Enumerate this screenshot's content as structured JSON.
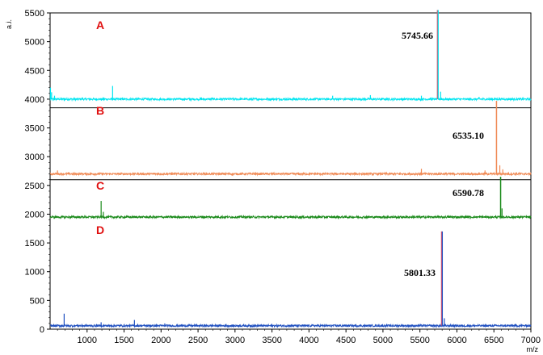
{
  "chart_data": {
    "type": "line",
    "title": "",
    "xlabel": "m/z",
    "ylabel": "a.i.",
    "xlim": [
      500,
      7000
    ],
    "ylim": [
      0,
      5500
    ],
    "x_ticks": [
      1000,
      1500,
      2000,
      2500,
      3000,
      3500,
      4000,
      4500,
      5000,
      5500,
      6000,
      6500,
      7000
    ],
    "y_ticks": [
      0,
      500,
      1000,
      1500,
      2000,
      2500,
      3000,
      3500,
      4000,
      4500,
      5000,
      5500
    ],
    "grid": false,
    "legend": "none",
    "series": [
      {
        "label": "A",
        "color": "#00e5f0",
        "baseline": 4000,
        "peak_label": "5745.66",
        "peaks": [
          {
            "x": 505,
            "h": 200
          },
          {
            "x": 520,
            "h": 120
          },
          {
            "x": 560,
            "h": 60
          },
          {
            "x": 1345,
            "h": 230
          },
          {
            "x": 4320,
            "h": 60
          },
          {
            "x": 4830,
            "h": 70
          },
          {
            "x": 5520,
            "h": 60
          },
          {
            "x": 5745.66,
            "h": 1550
          },
          {
            "x": 5780,
            "h": 130
          },
          {
            "x": 6300,
            "h": 40
          }
        ]
      },
      {
        "label": "B",
        "color": "#f08a55",
        "baseline": 2700,
        "peak_label": "6535.10",
        "peaks": [
          {
            "x": 600,
            "h": 60
          },
          {
            "x": 5520,
            "h": 90
          },
          {
            "x": 6380,
            "h": 60
          },
          {
            "x": 6535.1,
            "h": 1270
          },
          {
            "x": 6580,
            "h": 150
          },
          {
            "x": 6620,
            "h": 80
          }
        ]
      },
      {
        "label": "C",
        "color": "#1a8a1a",
        "baseline": 1950,
        "peak_label": "6590.78",
        "peaks": [
          {
            "x": 1190,
            "h": 280
          },
          {
            "x": 1220,
            "h": 90
          },
          {
            "x": 6590.78,
            "h": 700
          },
          {
            "x": 6610,
            "h": 150
          }
        ]
      },
      {
        "label": "D",
        "color": "#2050c0",
        "baseline": 60,
        "peak_label": "5801.33",
        "peaks": [
          {
            "x": 690,
            "h": 210
          },
          {
            "x": 1190,
            "h": 60
          },
          {
            "x": 1640,
            "h": 100
          },
          {
            "x": 2050,
            "h": 40
          },
          {
            "x": 2880,
            "h": 30
          },
          {
            "x": 4500,
            "h": 25
          },
          {
            "x": 5801.33,
            "h": 1640
          },
          {
            "x": 5830,
            "h": 130
          }
        ]
      }
    ]
  }
}
